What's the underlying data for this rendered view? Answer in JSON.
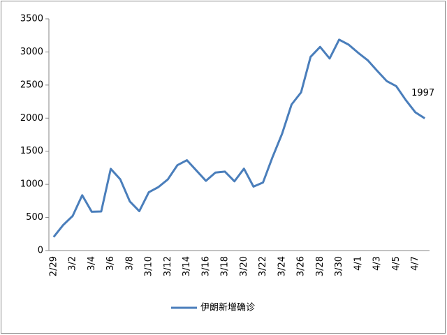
{
  "chart_data": {
    "type": "line",
    "categories": [
      "2/29",
      null,
      "3/2",
      null,
      "3/4",
      null,
      "3/6",
      null,
      "3/8",
      null,
      "3/10",
      null,
      "3/12",
      null,
      "3/14",
      null,
      "3/16",
      null,
      "3/18",
      null,
      "3/20",
      null,
      "3/22",
      null,
      "3/24",
      null,
      "3/26",
      null,
      "3/28",
      null,
      "3/30",
      null,
      "4/1",
      null,
      "4/3",
      null,
      "4/5",
      null,
      "4/7",
      null
    ],
    "series": [
      {
        "name": "伊朗新增确诊",
        "color": "#4a7ebb",
        "values": [
          205,
          385,
          523,
          835,
          586,
          591,
          1234,
          1076,
          743,
          595,
          881,
          958,
          1075,
          1289,
          1365,
          1209,
          1053,
          1178,
          1192,
          1046,
          1237,
          966,
          1028,
          1411,
          1762,
          2206,
          2389,
          2926,
          3076,
          2901,
          3186,
          3110,
          2987,
          2875,
          2715,
          2560,
          2483,
          2274,
          2089,
          1997
        ]
      }
    ],
    "ylim": [
      0,
      3500
    ],
    "yticks": [
      0,
      500,
      1000,
      1500,
      2000,
      2500,
      3000,
      3500
    ],
    "grid": false,
    "legend": "bottom"
  }
}
